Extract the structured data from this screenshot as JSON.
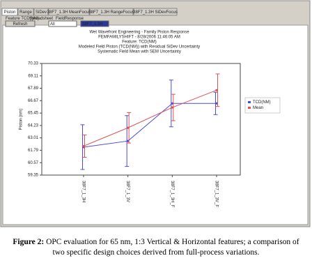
{
  "window": {
    "tabs": [
      "Piston",
      "Range",
      "SiDev",
      "38F7_1.3H MeanFocus",
      "38F7_1.3H RangeFocus",
      "38F7_1.3H SiDevFocus"
    ],
    "labels": [
      "Feature TCD(NM)",
      "Spreadsheet",
      "FieldResponse"
    ],
    "button": "Refresh",
    "dropdowns": [
      "All",
      "38F7_1.3H"
    ]
  },
  "chart_data": {
    "type": "line",
    "title_lines": [
      "Wet Wavefront Engineering - Family Piston Response",
      "FEMFAMILYSHIFT - 8/28/2006 11:46:05 AM",
      "Feature: TCD(NM)",
      "Modeled Field Piston (TCD(NM)) with Residual SiDev Uncertainty",
      "Systematic Field Mean with SEM Uncertainty"
    ],
    "y_label": "Piston (nm)",
    "categories": [
      "38F7_1_3H",
      "38F7_1_3V",
      "38F7_1_3H_F",
      "38F7_1_3V_F"
    ],
    "series": [
      {
        "name": "TCD(NM)",
        "color": "#4a4ae0",
        "values": [
          62.1,
          62.7,
          66.4,
          66.4
        ],
        "errors": [
          2.2,
          2.5,
          2.3,
          1.1
        ]
      },
      {
        "name": "Mean",
        "color": "#e05050",
        "values": [
          62.2,
          64.0,
          66.0,
          67.7
        ],
        "errors": [
          1.1,
          1.5,
          1.3,
          1.6
        ]
      }
    ],
    "ylim": [
      59.35,
      70.33
    ],
    "yticks": [
      {
        "value": 70.33,
        "label": "70.33"
      },
      {
        "value": 69.11,
        "label": "69.11"
      },
      {
        "value": 67.89,
        "label": "67.89"
      },
      {
        "value": 66.67,
        "label": "66.67"
      },
      {
        "value": 65.45,
        "label": "65.45"
      },
      {
        "value": 64.23,
        "label": "64.23"
      },
      {
        "value": 63.01,
        "label": "63.01"
      },
      {
        "value": 61.79,
        "label": "61.79"
      },
      {
        "value": 60.57,
        "label": "60.57"
      },
      {
        "value": 59.35,
        "label": "59.35"
      }
    ],
    "legend": "right"
  },
  "caption": {
    "label": "Figure 2:",
    "text": "OPC evaluation for 65 nm, 1:3 Vertical & Horizontal features; a comparison of two specific design choices derived from full-process variations."
  }
}
